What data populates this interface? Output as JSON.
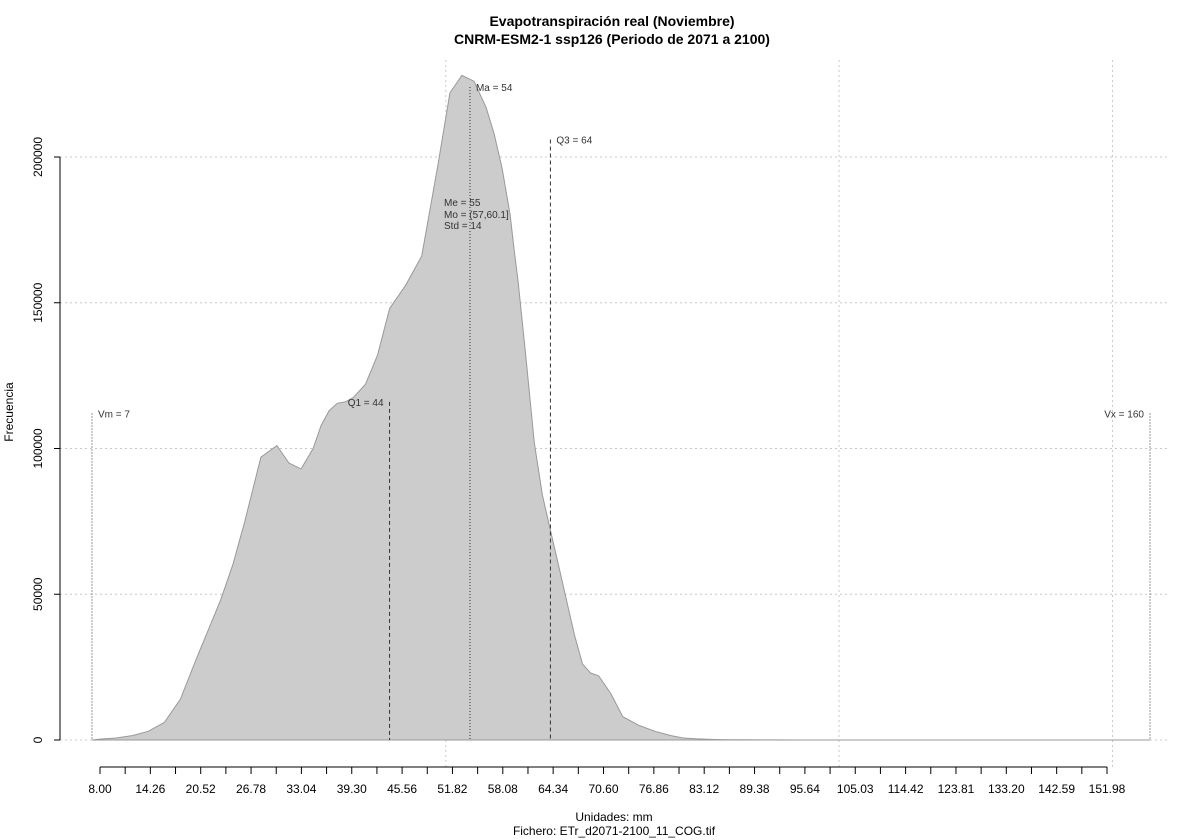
{
  "chart_data": {
    "type": "area",
    "title": "Evapotranspiración real (Noviembre)",
    "subtitle": "CNRM-ESM2-1 ssp126 (Periodo de 2071 a 2100)",
    "xlabel": "Unidades: mm",
    "ylabel": "Frecuencia",
    "caption": "Fichero: ETr_d2071-2100_11_COG.tif",
    "xlim": [
      6,
      165
    ],
    "ylim": [
      0,
      230000
    ],
    "grid": true,
    "fill_color": "#cccccc",
    "line_color": "#999999",
    "x_ticks": [
      {
        "value": 8.0,
        "label": "8.00"
      },
      {
        "value": 14.26,
        "label": "14.26"
      },
      {
        "value": 20.52,
        "label": "20.52"
      },
      {
        "value": 26.78,
        "label": "26.78"
      },
      {
        "value": 33.04,
        "label": "33.04"
      },
      {
        "value": 39.3,
        "label": "39.30"
      },
      {
        "value": 45.56,
        "label": "45.56"
      },
      {
        "value": 51.82,
        "label": "51.82"
      },
      {
        "value": 58.08,
        "label": "58.08"
      },
      {
        "value": 64.34,
        "label": "64.34"
      },
      {
        "value": 70.6,
        "label": "70.60"
      },
      {
        "value": 76.86,
        "label": "76.86"
      },
      {
        "value": 83.12,
        "label": "83.12"
      },
      {
        "value": 89.38,
        "label": "89.38"
      },
      {
        "value": 95.64,
        "label": "95.64"
      },
      {
        "value": 105.03,
        "label": "105.03"
      },
      {
        "value": 114.42,
        "label": "114.42"
      },
      {
        "value": 123.81,
        "label": "123.81"
      },
      {
        "value": 133.2,
        "label": "133.20"
      },
      {
        "value": 142.59,
        "label": "142.59"
      },
      {
        "value": 151.98,
        "label": "151.98"
      }
    ],
    "y_ticks": [
      {
        "value": 0,
        "label": "0"
      },
      {
        "value": 50000,
        "label": "50000"
      },
      {
        "value": 100000,
        "label": "100000"
      },
      {
        "value": 150000,
        "label": "150000"
      },
      {
        "value": 200000,
        "label": "200000"
      }
    ],
    "x_grid": [
      51.0,
      102.0,
      153.0
    ],
    "series": [
      {
        "x": [
          7,
          8,
          10,
          12,
          14,
          16,
          18,
          20,
          21.5,
          23,
          24.5,
          26,
          28,
          30,
          31.5,
          33,
          34.5,
          35.5,
          36.5,
          37.5,
          38.5,
          39.5,
          41,
          42.5,
          44,
          46,
          48,
          50,
          51.5,
          53,
          54.5,
          56,
          57,
          58,
          59,
          59.5,
          60,
          61,
          62,
          63,
          64,
          65,
          66,
          67,
          68,
          69,
          70,
          71.5,
          73,
          75,
          77,
          79,
          80.5,
          82,
          83.5,
          85,
          86.5,
          88,
          90,
          92,
          95,
          98,
          100,
          103,
          106,
          110,
          115,
          125,
          140,
          155,
          160
        ],
        "y": [
          0,
          300,
          700,
          1500,
          3000,
          6000,
          14000,
          28000,
          38000,
          48000,
          60000,
          75000,
          97000,
          101000,
          95000,
          93000,
          100000,
          108000,
          113000,
          115500,
          116000,
          117500,
          122000,
          132000,
          148000,
          156000,
          166000,
          197000,
          222000,
          228000,
          226000,
          217000,
          208000,
          196000,
          180000,
          168000,
          157000,
          130000,
          102000,
          84000,
          72000,
          60000,
          48000,
          36000,
          26000,
          23000,
          22000,
          16000,
          8000,
          5000,
          3000,
          1500,
          700,
          400,
          250,
          150,
          100,
          60,
          40,
          20,
          10,
          5,
          3,
          2,
          1,
          0,
          0,
          0,
          0,
          0,
          0
        ]
      }
    ],
    "annotations": [
      {
        "name": "vm",
        "label": "Vm = 7",
        "x": 7,
        "y_top": 112000,
        "style": "dotted",
        "text_side": "right"
      },
      {
        "name": "q1",
        "label": "Q1 = 44",
        "x": 44,
        "y_top": 116000,
        "style": "dashed",
        "text_side": "left"
      },
      {
        "name": "ma",
        "label": "Ma = 54",
        "x": 54,
        "y_top": 224000,
        "style": "dotted",
        "text_side": "right"
      },
      {
        "name": "q3",
        "label": "Q3 = 64",
        "x": 64,
        "y_top": 206000,
        "style": "dashed",
        "text_side": "right"
      },
      {
        "name": "vx",
        "label": "Vx = 160",
        "x": 160,
        "y_top": 112000,
        "style": "dotted",
        "text_side": "left"
      }
    ],
    "stats": [
      {
        "name": "median",
        "label": "Me = 55"
      },
      {
        "name": "mode",
        "label": "Mo = (57,60.1]"
      },
      {
        "name": "std",
        "label": "Std = 14"
      }
    ]
  }
}
